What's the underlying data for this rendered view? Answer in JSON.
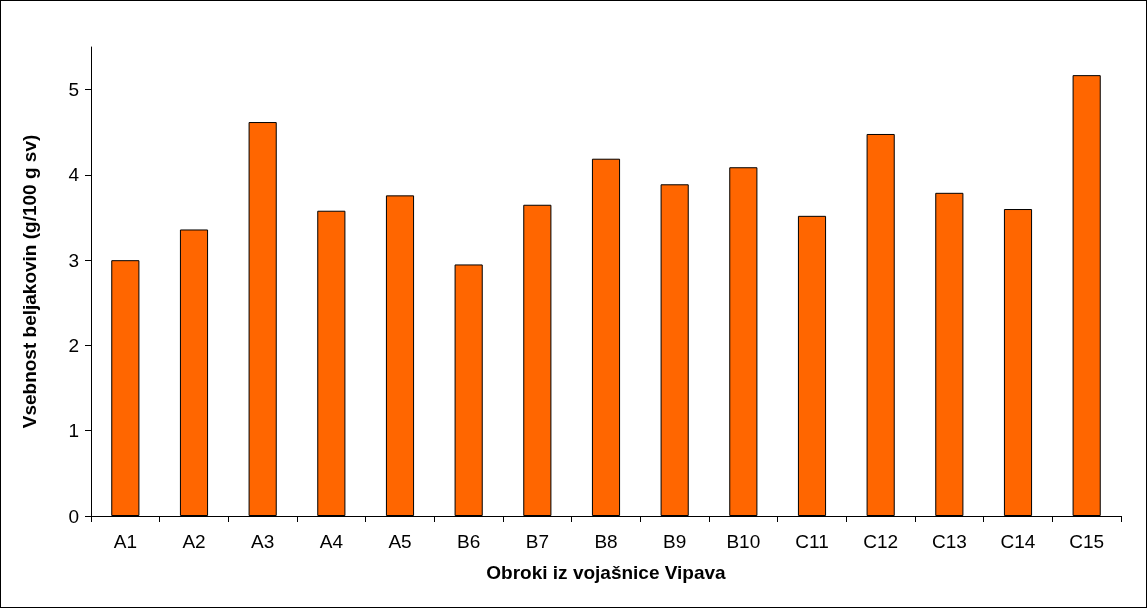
{
  "chart_data": {
    "type": "bar",
    "xlabel": "Obroki iz vojašnice Vipava",
    "ylabel": "Vsebnost beljakovin (g/100 g sv)",
    "categories": [
      "A1",
      "A2",
      "A3",
      "A4",
      "A5",
      "B6",
      "B7",
      "B8",
      "B9",
      "B10",
      "C11",
      "C12",
      "C13",
      "C14",
      "C15"
    ],
    "values": [
      3.0,
      3.36,
      4.62,
      3.58,
      3.76,
      2.95,
      3.65,
      4.19,
      3.89,
      4.09,
      3.52,
      4.48,
      3.79,
      3.6,
      5.17
    ],
    "color": "#ff6600",
    "ylim": [
      0,
      5.5
    ],
    "yticks": [
      0,
      1,
      2,
      3,
      4,
      5
    ],
    "grid": false
  }
}
